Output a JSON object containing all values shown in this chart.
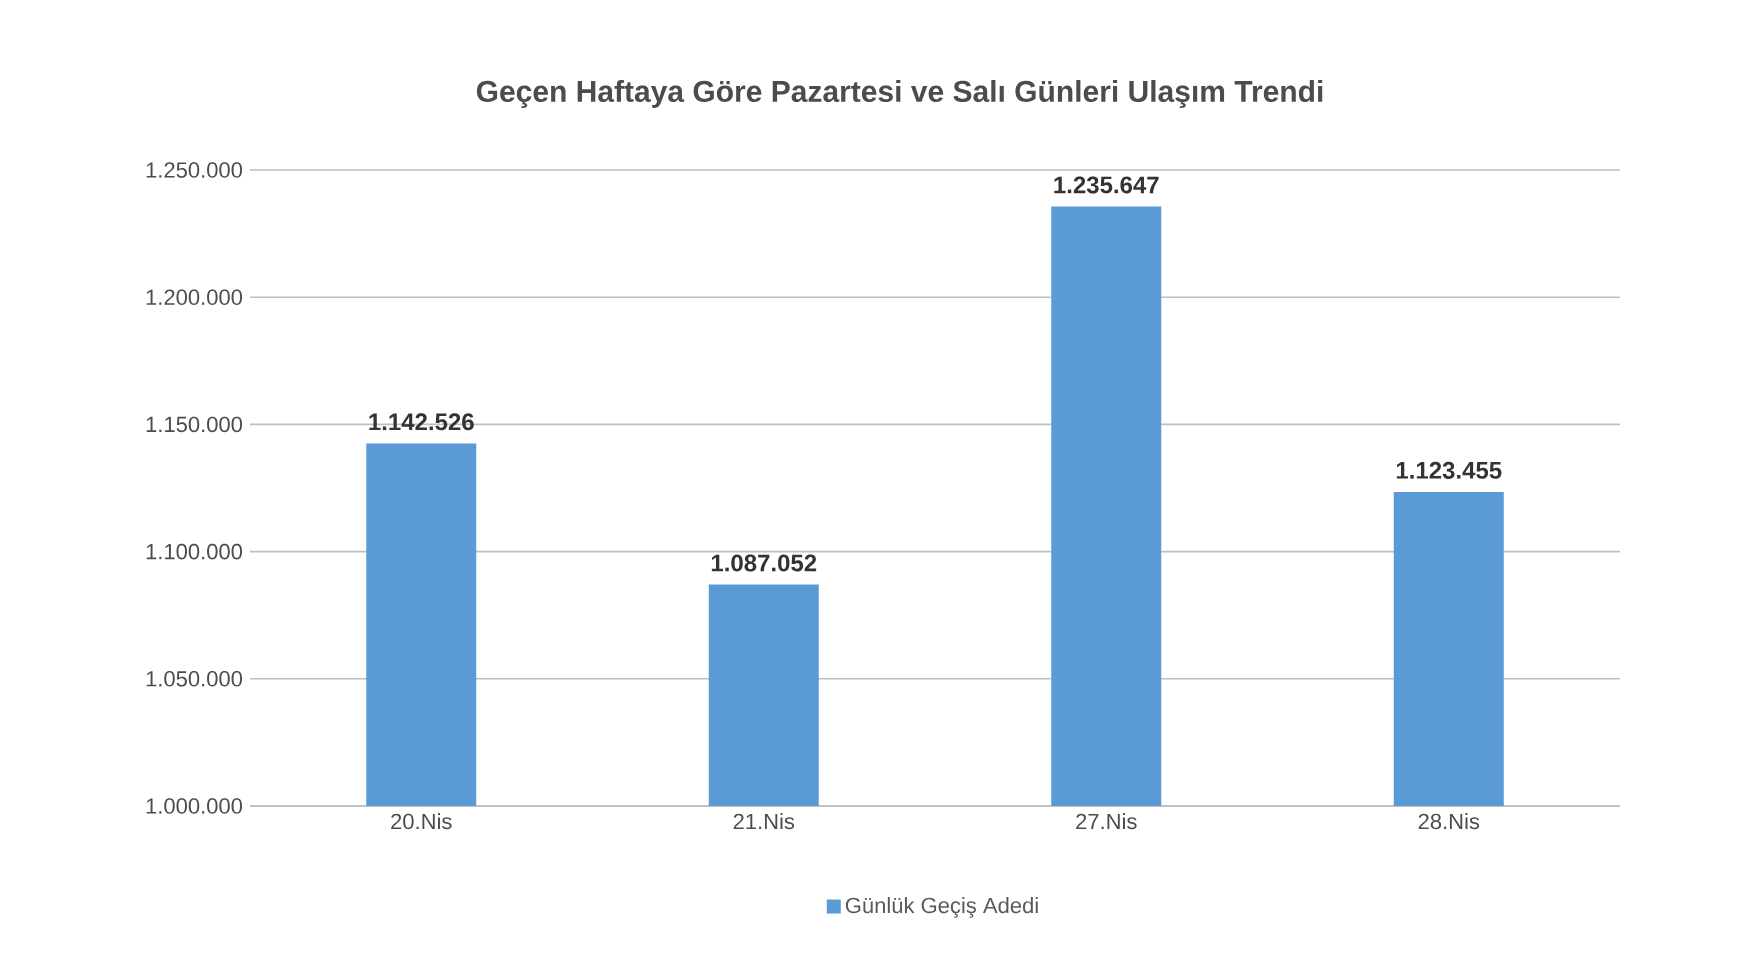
{
  "chart_data": {
    "type": "bar",
    "title": "Geçen Haftaya Göre Pazartesi ve Salı Günleri Ulaşım Trendi",
    "categories": [
      "20.Nis",
      "21.Nis",
      "27.Nis",
      "28.Nis"
    ],
    "series": [
      {
        "name": "Günlük Geçiş Adedi",
        "color": "#5b9bd5",
        "values": [
          1142526,
          1087052,
          1235647,
          1123455
        ],
        "value_labels": [
          "1.142.526",
          "1.087.052",
          "1.235.647",
          "1.123.455"
        ]
      }
    ],
    "ylim": [
      1000000,
      1250000
    ],
    "yticks": [
      {
        "value": 1000000,
        "label": "1.000.000"
      },
      {
        "value": 1050000,
        "label": "1.050.000"
      },
      {
        "value": 1100000,
        "label": "1.100.000"
      },
      {
        "value": 1150000,
        "label": "1.150.000"
      },
      {
        "value": 1200000,
        "label": "1.200.000"
      },
      {
        "value": 1250000,
        "label": "1.250.000"
      }
    ],
    "grid": "y",
    "legend": "bottom"
  }
}
